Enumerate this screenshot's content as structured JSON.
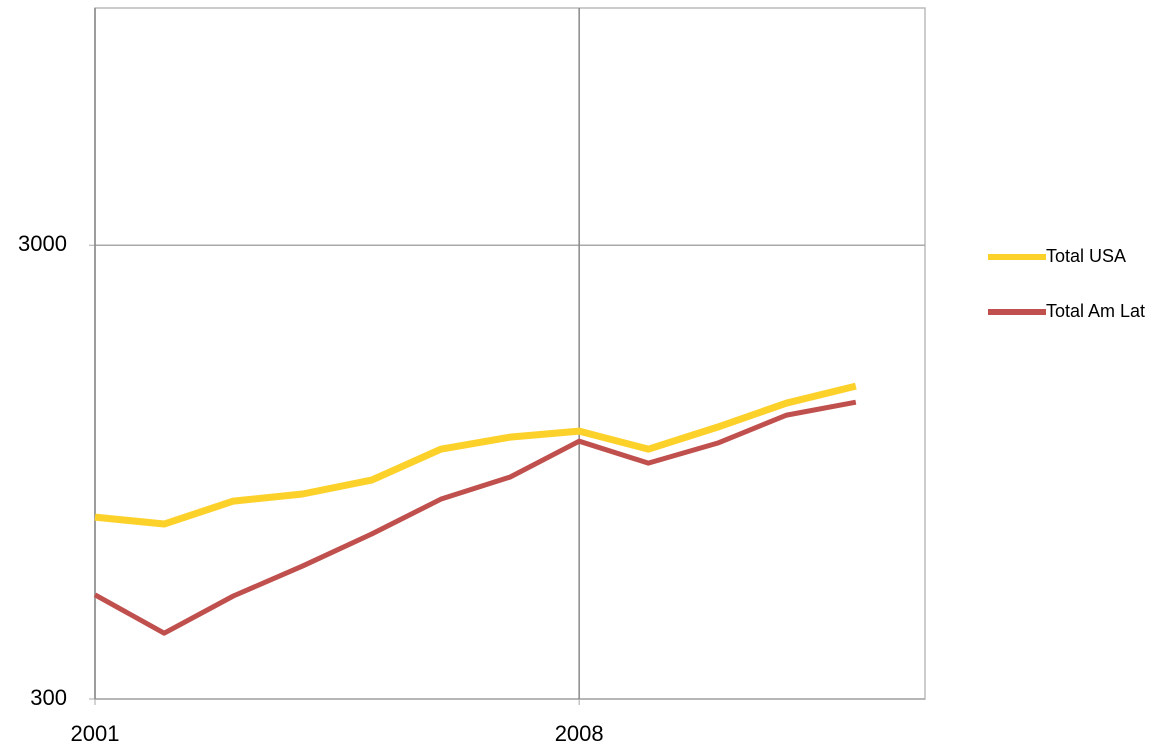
{
  "chart_data": {
    "type": "line",
    "log_y": true,
    "x": [
      2001,
      2002,
      2003,
      2004,
      2005,
      2006,
      2007,
      2008,
      2009,
      2010,
      2011,
      2012
    ],
    "series": [
      {
        "name": "Total USA",
        "color": "#fcd12a",
        "values": [
          755,
          729,
          819,
          849,
          911,
          1066,
          1133,
          1168,
          1066,
          1192,
          1347,
          1468
        ]
      },
      {
        "name": "Total Am Lat",
        "color": "#c0504d",
        "values": [
          509,
          419,
          506,
          589,
          693,
          827,
          925,
          1110,
          993,
          1099,
          1267,
          1353
        ]
      }
    ],
    "xlim": [
      2001,
      2013
    ],
    "xticks": [
      2001,
      2008
    ],
    "ylim": [
      300,
      10000
    ],
    "yticks": [
      300,
      3000
    ],
    "grid": true,
    "legend": "right"
  }
}
